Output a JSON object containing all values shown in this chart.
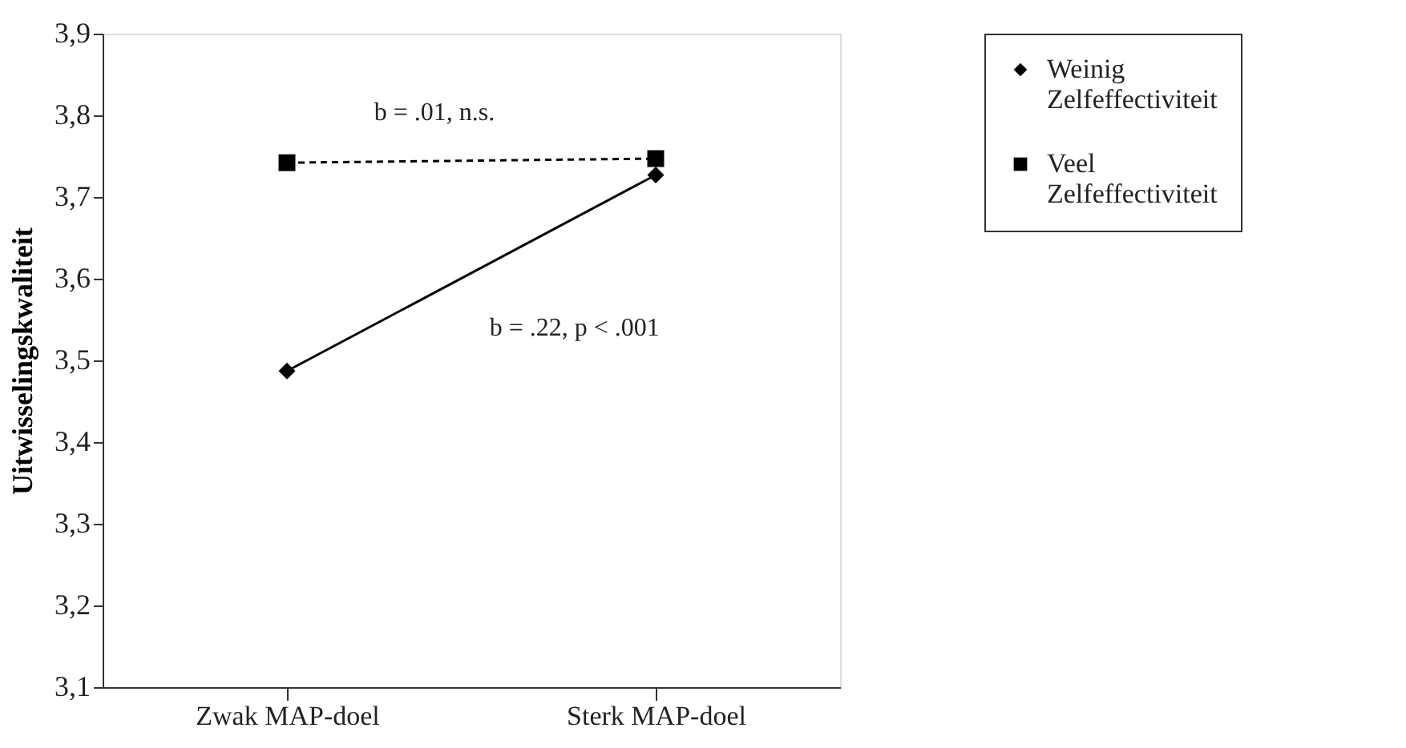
{
  "chart_data": {
    "type": "line",
    "ylabel": "Uitwisselingskwaliteit",
    "categories": [
      "Zwak MAP-doel",
      "Sterk MAP-doel"
    ],
    "series": [
      {
        "name": "Weinig Zelfeffectiviteit",
        "color": "#000000",
        "values": [
          3.487,
          3.727
        ],
        "marker": "diamond",
        "line_style": "solid"
      },
      {
        "name": "Veel Zelfeffectiviteit",
        "color": "#000000",
        "values": [
          3.742,
          3.747
        ],
        "marker": "square",
        "line_style": "dashed"
      }
    ],
    "ylim": [
      3.1,
      3.9
    ],
    "yticks": [
      {
        "value": 3.1,
        "label": "3,1"
      },
      {
        "value": 3.2,
        "label": "3,2"
      },
      {
        "value": 3.3,
        "label": "3,3"
      },
      {
        "value": 3.4,
        "label": "3,4"
      },
      {
        "value": 3.5,
        "label": "3,5"
      },
      {
        "value": 3.6,
        "label": "3,6"
      },
      {
        "value": 3.7,
        "label": "3,7"
      },
      {
        "value": 3.8,
        "label": "3,8"
      },
      {
        "value": 3.9,
        "label": "3,9"
      }
    ],
    "annotations": [
      "b = .01,  n.s.",
      "b = .22,  p  < .001"
    ],
    "grid": false,
    "legend": "right"
  }
}
